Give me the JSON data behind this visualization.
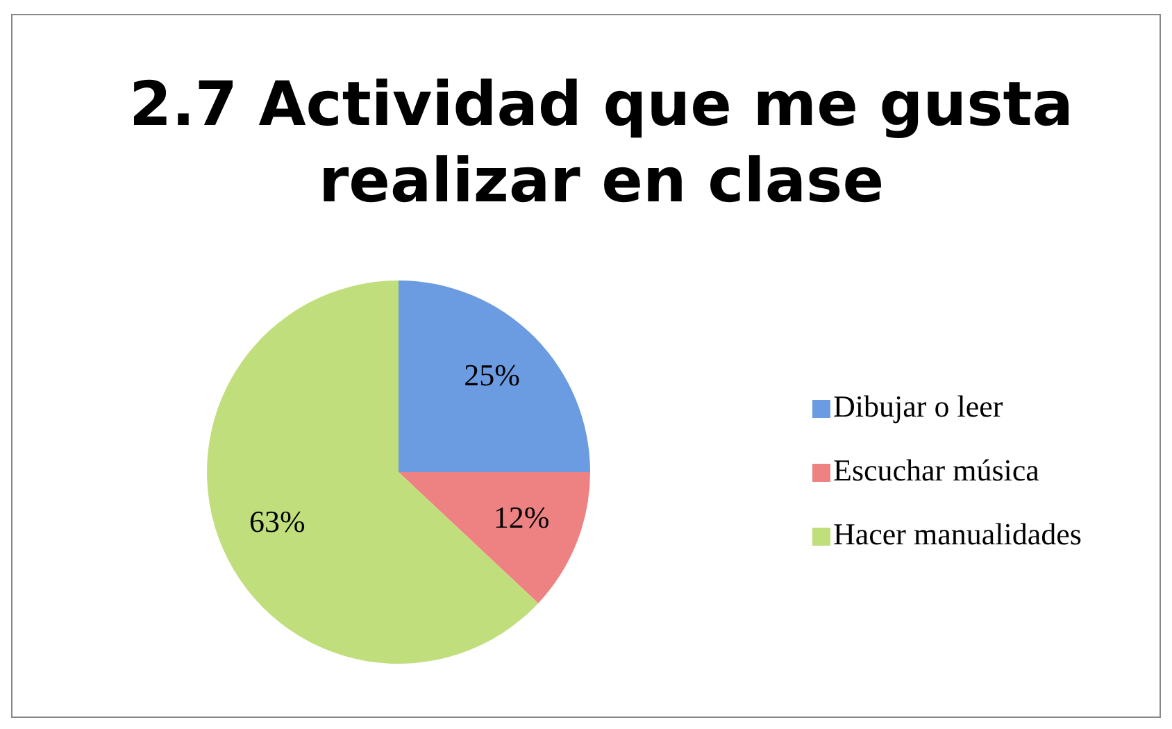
{
  "chart_data": {
    "type": "pie",
    "title": "2.7 Actividad que me gusta realizar en clase",
    "categories": [
      "Dibujar o leer",
      "Escuchar música",
      "Hacer manualidades"
    ],
    "values": [
      25,
      12,
      63
    ],
    "colors": [
      "#6b9be0",
      "#ee8282",
      "#c0df7c"
    ],
    "value_labels": [
      "25%",
      "12%",
      "63%"
    ],
    "legend": "right"
  }
}
